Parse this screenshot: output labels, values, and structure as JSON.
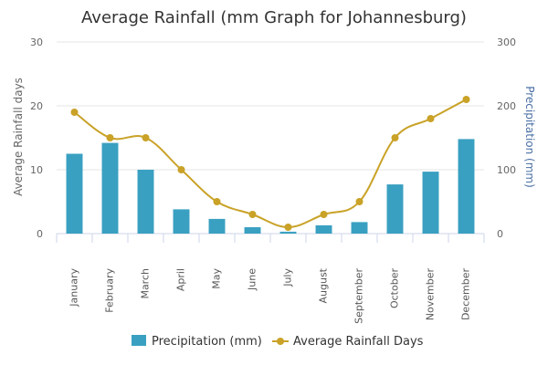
{
  "chart_data": {
    "type": "bar",
    "title": "Average Rainfall (mm Graph for Johannesburg)",
    "categories": [
      "January",
      "February",
      "March",
      "April",
      "May",
      "June",
      "July",
      "August",
      "September",
      "October",
      "November",
      "December"
    ],
    "series": [
      {
        "name": "Precipitation (mm)",
        "type": "bar",
        "axis": "right",
        "color": "#3aa0c1",
        "values": [
          125,
          142,
          100,
          38,
          23,
          10,
          3,
          13,
          18,
          77,
          97,
          148
        ]
      },
      {
        "name": "Average Rainfall Days",
        "type": "line",
        "axis": "left",
        "color": "#c9a227",
        "values": [
          19,
          15,
          15,
          10,
          5,
          3,
          1,
          3,
          5,
          15,
          18,
          21
        ]
      }
    ],
    "y_left": {
      "label": "Average Rainfall days",
      "ylim": [
        0,
        30
      ],
      "ticks": [
        0,
        10,
        20,
        30
      ]
    },
    "y_right": {
      "label": "Precipitation (mm)",
      "ylim": [
        0,
        300
      ],
      "ticks": [
        0,
        100,
        200,
        300
      ]
    },
    "grid": true,
    "legend": "bottom-center"
  }
}
